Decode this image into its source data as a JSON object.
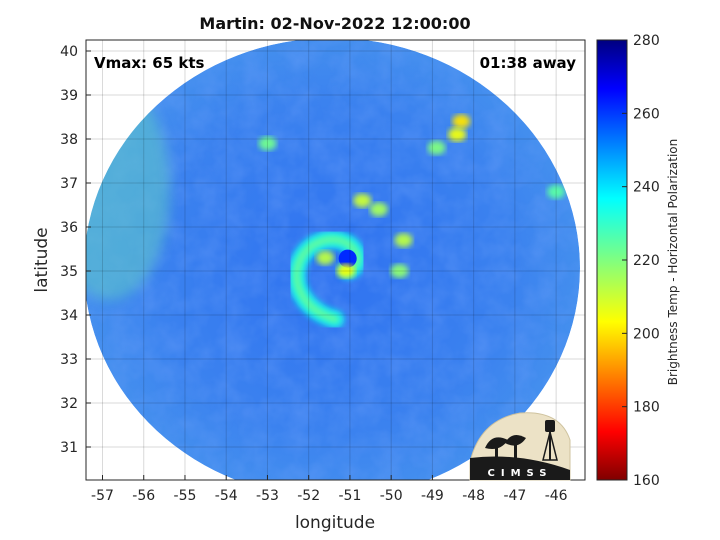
{
  "chart_data": {
    "type": "heatmap",
    "title": "Martin: 02-Nov-2022 12:00:00",
    "xlabel": "longitude",
    "ylabel": "latitude",
    "xlim": [
      -57.4,
      -45.3
    ],
    "ylim": [
      30.25,
      40.25
    ],
    "x_ticks": [
      -57,
      -56,
      -55,
      -54,
      -53,
      -52,
      -51,
      -50,
      -49,
      -48,
      -47,
      -46
    ],
    "y_ticks": [
      31,
      32,
      33,
      34,
      35,
      36,
      37,
      38,
      39,
      40
    ],
    "grid": true,
    "annotations": {
      "vmax": "Vmax: 65 kts",
      "time_away": "01:38 away"
    },
    "colorbar": {
      "label": "Brightness Temp - Horizontal Polarization",
      "range": [
        160,
        280
      ],
      "ticks": [
        160,
        180,
        200,
        220,
        240,
        260,
        280
      ]
    },
    "storm_center": {
      "lon": -51.2,
      "lat": 35.1
    },
    "cold_features": [
      {
        "lon": -51.1,
        "lat": 35.0,
        "temp": 205
      },
      {
        "lon": -51.6,
        "lat": 35.3,
        "temp": 212
      },
      {
        "lon": -50.7,
        "lat": 36.6,
        "temp": 210
      },
      {
        "lon": -50.3,
        "lat": 36.4,
        "temp": 215
      },
      {
        "lon": -49.7,
        "lat": 35.7,
        "temp": 212
      },
      {
        "lon": -49.8,
        "lat": 35.0,
        "temp": 218
      },
      {
        "lon": -48.3,
        "lat": 38.4,
        "temp": 200
      },
      {
        "lon": -48.4,
        "lat": 38.1,
        "temp": 205
      },
      {
        "lon": -48.9,
        "lat": 37.8,
        "temp": 220
      },
      {
        "lon": -53.0,
        "lat": 37.9,
        "temp": 222
      },
      {
        "lon": -46.0,
        "lat": 36.8,
        "temp": 225
      }
    ],
    "logo": {
      "text": "CIMSS"
    }
  }
}
